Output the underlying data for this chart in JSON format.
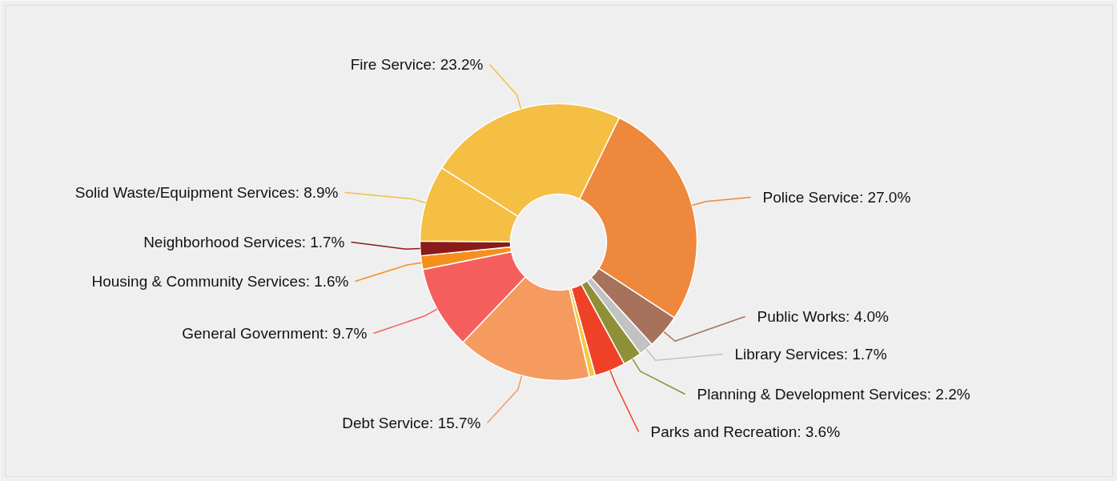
{
  "chart_data": {
    "type": "donut",
    "categories": [
      "Police Service",
      "Public Works",
      "Library Services",
      "Planning & Development Services",
      "Parks and Recreation",
      null,
      "Debt Service",
      "General Government",
      "Housing & Community Services",
      "Neighborhood Services",
      "Solid Waste/Equipment Services",
      "Fire Service"
    ],
    "values": [
      27.0,
      4.0,
      1.7,
      2.2,
      3.6,
      0.7,
      15.7,
      9.7,
      1.6,
      1.7,
      8.9,
      23.2
    ],
    "value_labels": [
      "27.0%",
      "4.0%",
      "1.7%",
      "2.2%",
      "3.6%",
      null,
      "15.7%",
      "9.7%",
      "1.6%",
      "1.7%",
      "8.9%",
      "23.2%"
    ],
    "colors": [
      "#ee883c",
      "#a6725c",
      "#c2c2c2",
      "#8f8f38",
      "#ee4128",
      "#f5c842",
      "#f59b5f",
      "#f45f5d",
      "#f5901e",
      "#8b1a1a",
      "#f4bf43",
      "#f4bf43"
    ]
  }
}
